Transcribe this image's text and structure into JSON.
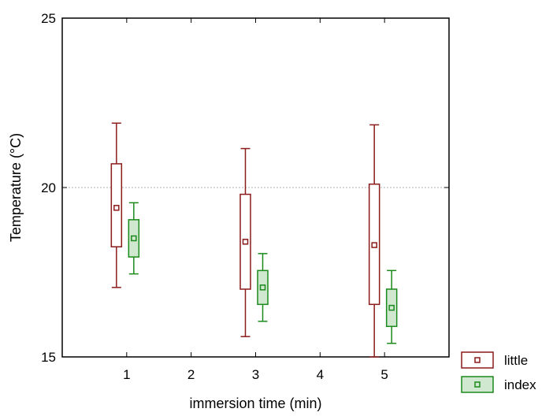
{
  "chart_data": {
    "type": "box",
    "xlabel": "immersion time (min)",
    "ylabel": "Temperature (°C)",
    "xlim": [
      0,
      6
    ],
    "ylim": [
      15,
      25
    ],
    "xticks": [
      1,
      2,
      3,
      4,
      5
    ],
    "xtick_labels": [
      "1",
      "2",
      "3",
      "4",
      "5"
    ],
    "yticks": [
      15,
      20,
      25
    ],
    "ytick_labels": [
      "15",
      "20",
      "25"
    ],
    "grid": "horizontal dotted line at 20",
    "legend_position": "bottom-right, outside plot",
    "series": [
      {
        "name": "little",
        "color": "#8b1a1a",
        "fill": "#ffffff",
        "boxes": [
          {
            "x": 1,
            "whisker_low": 17.05,
            "q1": 18.25,
            "median": 19.4,
            "q3": 20.7,
            "whisker_high": 21.9
          },
          {
            "x": 3,
            "whisker_low": 15.6,
            "q1": 17.0,
            "median": 18.4,
            "q3": 19.8,
            "whisker_high": 21.15
          },
          {
            "x": 5,
            "whisker_low": 15.0,
            "q1": 16.55,
            "median": 18.3,
            "q3": 20.1,
            "whisker_high": 21.85
          }
        ]
      },
      {
        "name": "index",
        "color": "#1a8a1a",
        "fill": "#cfe8cf",
        "boxes": [
          {
            "x": 1,
            "whisker_low": 17.45,
            "q1": 17.95,
            "median": 18.5,
            "q3": 19.05,
            "whisker_high": 19.55
          },
          {
            "x": 3,
            "whisker_low": 16.05,
            "q1": 16.55,
            "median": 17.05,
            "q3": 17.55,
            "whisker_high": 18.05
          },
          {
            "x": 5,
            "whisker_low": 15.4,
            "q1": 15.9,
            "median": 16.45,
            "q3": 17.0,
            "whisker_high": 17.55
          }
        ]
      }
    ]
  }
}
